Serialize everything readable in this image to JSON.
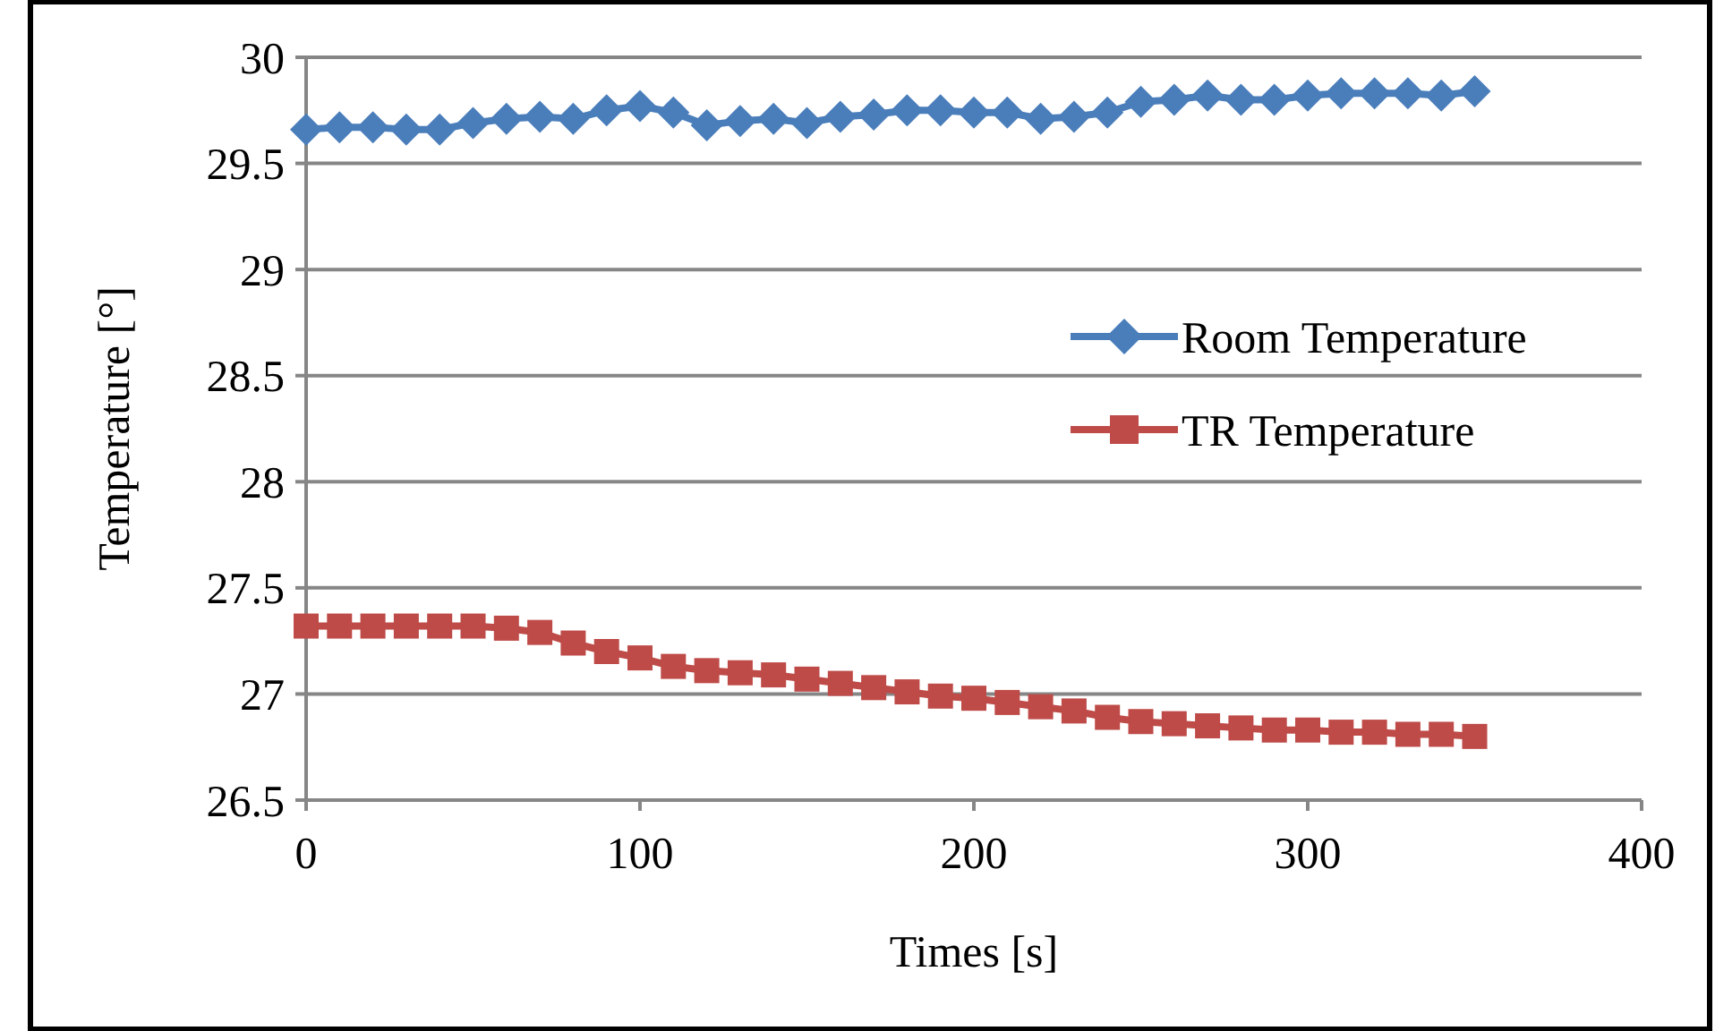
{
  "chart_data": {
    "type": "line",
    "xlabel": "Times [s]",
    "ylabel": "Temperature [°]",
    "xlim": [
      0,
      400
    ],
    "xticks": [
      0,
      100,
      200,
      300,
      400
    ],
    "ylim": [
      26.5,
      30
    ],
    "yticks": [
      26.5,
      27,
      27.5,
      28,
      28.5,
      29,
      29.5,
      30
    ],
    "grid": "y",
    "legend": "right",
    "series": [
      {
        "name": "Room Temperature",
        "color": "#4a7ebb",
        "marker": "diamond",
        "x": [
          0,
          10,
          20,
          30,
          40,
          50,
          60,
          70,
          80,
          90,
          100,
          110,
          120,
          130,
          140,
          150,
          160,
          170,
          180,
          190,
          200,
          210,
          220,
          230,
          240,
          250,
          260,
          270,
          280,
          290,
          300,
          310,
          320,
          330,
          340,
          350
        ],
        "values": [
          29.66,
          29.67,
          29.67,
          29.66,
          29.66,
          29.69,
          29.71,
          29.72,
          29.71,
          29.75,
          29.77,
          29.74,
          29.68,
          29.7,
          29.71,
          29.69,
          29.72,
          29.73,
          29.75,
          29.75,
          29.74,
          29.74,
          29.71,
          29.72,
          29.74,
          29.79,
          29.8,
          29.82,
          29.8,
          29.8,
          29.82,
          29.83,
          29.83,
          29.83,
          29.82,
          29.84
        ]
      },
      {
        "name": "TR Temperature",
        "color": "#be4b48",
        "marker": "square",
        "x": [
          0,
          10,
          20,
          30,
          40,
          50,
          60,
          70,
          80,
          90,
          100,
          110,
          120,
          130,
          140,
          150,
          160,
          170,
          180,
          190,
          200,
          210,
          220,
          230,
          240,
          250,
          260,
          270,
          280,
          290,
          300,
          310,
          320,
          330,
          340,
          350
        ],
        "values": [
          27.32,
          27.32,
          27.32,
          27.32,
          27.32,
          27.32,
          27.31,
          27.29,
          27.24,
          27.2,
          27.17,
          27.13,
          27.11,
          27.1,
          27.09,
          27.07,
          27.05,
          27.03,
          27.01,
          26.99,
          26.98,
          26.96,
          26.94,
          26.92,
          26.89,
          26.87,
          26.86,
          26.85,
          26.84,
          26.83,
          26.83,
          26.82,
          26.82,
          26.81,
          26.81,
          26.8
        ]
      }
    ]
  }
}
